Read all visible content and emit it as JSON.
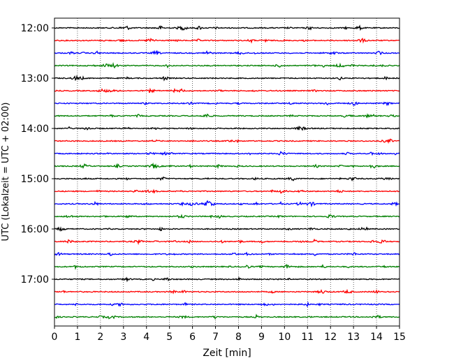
{
  "chart_data": {
    "type": "line",
    "title": "",
    "xlabel": "Zeit  [min]",
    "ylabel": "UTC (Lokalzeit = UTC + 02:00)",
    "xlim": [
      0,
      15
    ],
    "x_ticks": [
      0,
      1,
      2,
      3,
      4,
      5,
      6,
      7,
      8,
      9,
      10,
      11,
      12,
      13,
      14,
      15
    ],
    "y_tick_labels": [
      "12:00",
      "13:00",
      "14:00",
      "15:00",
      "16:00",
      "17:00"
    ],
    "grid": "vertical dotted at each minute",
    "trace_colors": [
      "#000000",
      "#ff0000",
      "#0000ff",
      "#008000"
    ],
    "trace_interval_min": 15,
    "traces": [
      {
        "start": "12:00",
        "color": "#000000"
      },
      {
        "start": "12:15",
        "color": "#ff0000"
      },
      {
        "start": "12:30",
        "color": "#0000ff"
      },
      {
        "start": "12:45",
        "color": "#008000"
      },
      {
        "start": "13:00",
        "color": "#000000"
      },
      {
        "start": "13:15",
        "color": "#ff0000"
      },
      {
        "start": "13:30",
        "color": "#0000ff"
      },
      {
        "start": "13:45",
        "color": "#008000"
      },
      {
        "start": "14:00",
        "color": "#000000"
      },
      {
        "start": "14:15",
        "color": "#ff0000"
      },
      {
        "start": "14:30",
        "color": "#0000ff"
      },
      {
        "start": "14:45",
        "color": "#008000"
      },
      {
        "start": "15:00",
        "color": "#000000"
      },
      {
        "start": "15:15",
        "color": "#ff0000"
      },
      {
        "start": "15:30",
        "color": "#0000ff"
      },
      {
        "start": "15:45",
        "color": "#008000"
      },
      {
        "start": "16:00",
        "color": "#000000"
      },
      {
        "start": "16:15",
        "color": "#ff0000"
      },
      {
        "start": "16:30",
        "color": "#0000ff"
      },
      {
        "start": "16:45",
        "color": "#008000"
      },
      {
        "start": "17:00",
        "color": "#000000"
      },
      {
        "start": "17:15",
        "color": "#ff0000"
      },
      {
        "start": "17:30",
        "color": "#0000ff"
      },
      {
        "start": "17:45",
        "color": "#008000"
      }
    ]
  }
}
